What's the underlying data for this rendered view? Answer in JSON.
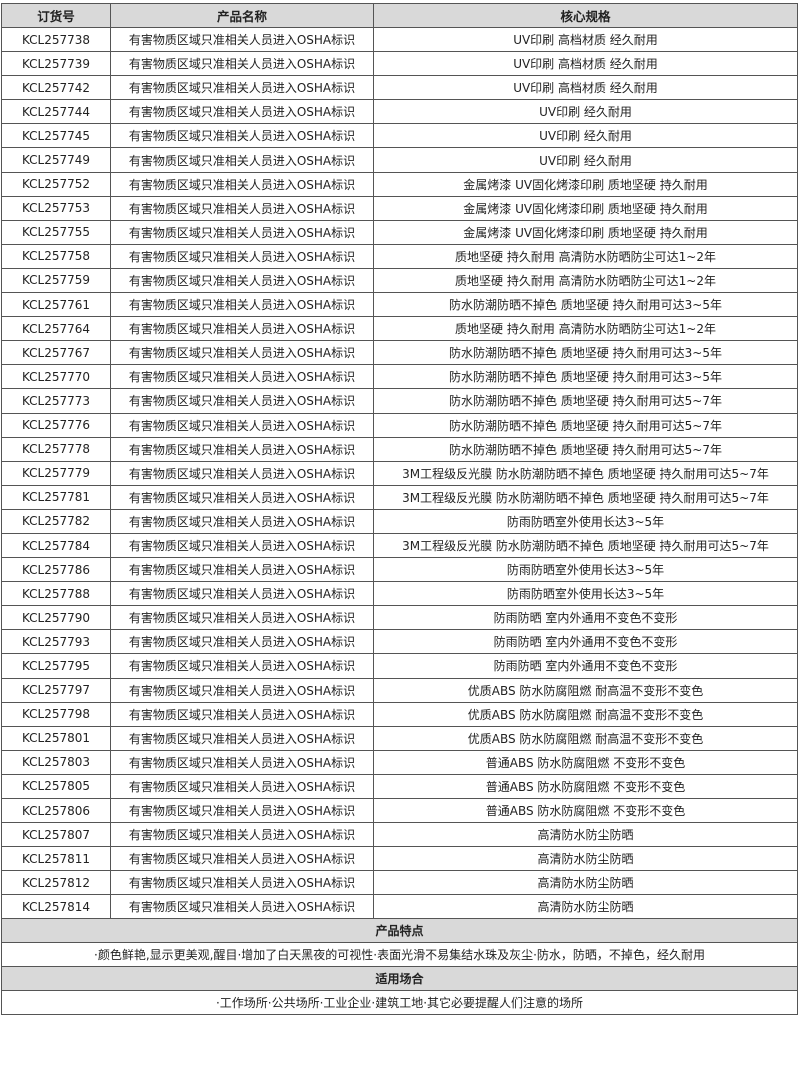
{
  "header": {
    "col1": "订货号",
    "col2": "产品名称",
    "col3": "核心规格"
  },
  "rows": [
    [
      "KCL257738",
      "有害物质区域只准相关人员进入OSHA标识",
      "UV印刷 高档材质 经久耐用"
    ],
    [
      "KCL257739",
      "有害物质区域只准相关人员进入OSHA标识",
      "UV印刷 高档材质 经久耐用"
    ],
    [
      "KCL257742",
      "有害物质区域只准相关人员进入OSHA标识",
      "UV印刷 高档材质 经久耐用"
    ],
    [
      "KCL257744",
      "有害物质区域只准相关人员进入OSHA标识",
      "UV印刷 经久耐用"
    ],
    [
      "KCL257745",
      "有害物质区域只准相关人员进入OSHA标识",
      "UV印刷 经久耐用"
    ],
    [
      "KCL257749",
      "有害物质区域只准相关人员进入OSHA标识",
      "UV印刷 经久耐用"
    ],
    [
      "KCL257752",
      "有害物质区域只准相关人员进入OSHA标识",
      "金属烤漆 UV固化烤漆印刷 质地坚硬 持久耐用"
    ],
    [
      "KCL257753",
      "有害物质区域只准相关人员进入OSHA标识",
      "金属烤漆 UV固化烤漆印刷 质地坚硬 持久耐用"
    ],
    [
      "KCL257755",
      "有害物质区域只准相关人员进入OSHA标识",
      "金属烤漆 UV固化烤漆印刷 质地坚硬 持久耐用"
    ],
    [
      "KCL257758",
      "有害物质区域只准相关人员进入OSHA标识",
      "质地坚硬 持久耐用 高清防水防晒防尘可达1~2年"
    ],
    [
      "KCL257759",
      "有害物质区域只准相关人员进入OSHA标识",
      "质地坚硬 持久耐用 高清防水防晒防尘可达1~2年"
    ],
    [
      "KCL257761",
      "有害物质区域只准相关人员进入OSHA标识",
      "防水防潮防晒不掉色 质地坚硬 持久耐用可达3~5年"
    ],
    [
      "KCL257764",
      "有害物质区域只准相关人员进入OSHA标识",
      "质地坚硬 持久耐用 高清防水防晒防尘可达1~2年"
    ],
    [
      "KCL257767",
      "有害物质区域只准相关人员进入OSHA标识",
      "防水防潮防晒不掉色 质地坚硬 持久耐用可达3~5年"
    ],
    [
      "KCL257770",
      "有害物质区域只准相关人员进入OSHA标识",
      "防水防潮防晒不掉色 质地坚硬 持久耐用可达3~5年"
    ],
    [
      "KCL257773",
      "有害物质区域只准相关人员进入OSHA标识",
      "防水防潮防晒不掉色 质地坚硬 持久耐用可达5~7年"
    ],
    [
      "KCL257776",
      "有害物质区域只准相关人员进入OSHA标识",
      "防水防潮防晒不掉色 质地坚硬 持久耐用可达5~7年"
    ],
    [
      "KCL257778",
      "有害物质区域只准相关人员进入OSHA标识",
      "防水防潮防晒不掉色 质地坚硬 持久耐用可达5~7年"
    ],
    [
      "KCL257779",
      "有害物质区域只准相关人员进入OSHA标识",
      "3M工程级反光膜 防水防潮防晒不掉色 质地坚硬 持久耐用可达5~7年"
    ],
    [
      "KCL257781",
      "有害物质区域只准相关人员进入OSHA标识",
      "3M工程级反光膜 防水防潮防晒不掉色 质地坚硬 持久耐用可达5~7年"
    ],
    [
      "KCL257782",
      "有害物质区域只准相关人员进入OSHA标识",
      "防雨防晒室外使用长达3~5年"
    ],
    [
      "KCL257784",
      "有害物质区域只准相关人员进入OSHA标识",
      "3M工程级反光膜 防水防潮防晒不掉色 质地坚硬 持久耐用可达5~7年"
    ],
    [
      "KCL257786",
      "有害物质区域只准相关人员进入OSHA标识",
      "防雨防晒室外使用长达3~5年"
    ],
    [
      "KCL257788",
      "有害物质区域只准相关人员进入OSHA标识",
      "防雨防晒室外使用长达3~5年"
    ],
    [
      "KCL257790",
      "有害物质区域只准相关人员进入OSHA标识",
      "防雨防晒 室内外通用不变色不变形"
    ],
    [
      "KCL257793",
      "有害物质区域只准相关人员进入OSHA标识",
      "防雨防晒 室内外通用不变色不变形"
    ],
    [
      "KCL257795",
      "有害物质区域只准相关人员进入OSHA标识",
      "防雨防晒 室内外通用不变色不变形"
    ],
    [
      "KCL257797",
      "有害物质区域只准相关人员进入OSHA标识",
      "优质ABS 防水防腐阻燃 耐高温不变形不变色"
    ],
    [
      "KCL257798",
      "有害物质区域只准相关人员进入OSHA标识",
      "优质ABS 防水防腐阻燃 耐高温不变形不变色"
    ],
    [
      "KCL257801",
      "有害物质区域只准相关人员进入OSHA标识",
      "优质ABS 防水防腐阻燃 耐高温不变形不变色"
    ],
    [
      "KCL257803",
      "有害物质区域只准相关人员进入OSHA标识",
      "普通ABS 防水防腐阻燃 不变形不变色"
    ],
    [
      "KCL257805",
      "有害物质区域只准相关人员进入OSHA标识",
      "普通ABS 防水防腐阻燃 不变形不变色"
    ],
    [
      "KCL257806",
      "有害物质区域只准相关人员进入OSHA标识",
      "普通ABS 防水防腐阻燃 不变形不变色"
    ],
    [
      "KCL257807",
      "有害物质区域只准相关人员进入OSHA标识",
      "高清防水防尘防晒"
    ],
    [
      "KCL257811",
      "有害物质区域只准相关人员进入OSHA标识",
      "高清防水防尘防晒"
    ],
    [
      "KCL257812",
      "有害物质区域只准相关人员进入OSHA标识",
      "高清防水防尘防晒"
    ],
    [
      "KCL257814",
      "有害物质区域只准相关人员进入OSHA标识",
      "高清防水防尘防晒"
    ]
  ],
  "features": {
    "title": "产品特点",
    "text": "·颜色鲜艳,显示更美观,醒目·增加了白天黑夜的可视性·表面光滑不易集结水珠及灰尘·防水，防晒，不掉色，经久耐用"
  },
  "usage": {
    "title": "适用场合",
    "text": "·工作场所·公共场所·工业企业·建筑工地·其它必要提醒人们注意的场所"
  },
  "colors": {
    "header_bg": "#d9d9d9",
    "border": "#555555"
  }
}
